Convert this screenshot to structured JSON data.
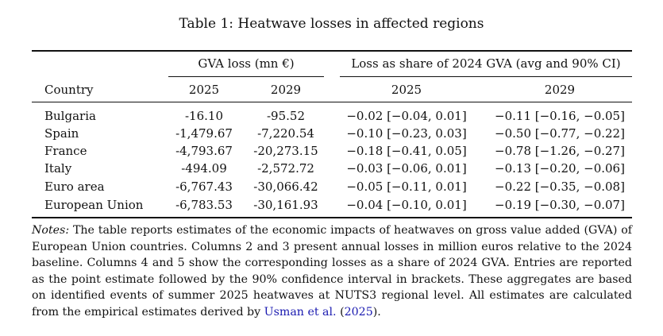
{
  "table": {
    "caption": "Table 1: Heatwave losses in affected regions",
    "group_headers": {
      "gva_loss": "GVA loss (mn €)",
      "share": "Loss as share of 2024 GVA (avg and 90% CI)"
    },
    "column_headers": {
      "country": "Country",
      "gva_2025": "2025",
      "gva_2029": "2029",
      "share_2025": "2025",
      "share_2029": "2029"
    },
    "rows": [
      {
        "country": "Bulgaria",
        "gva_2025": "-16.10",
        "gva_2029": "-95.52",
        "share_2025": "−0.02 [−0.04, 0.01]",
        "share_2029": "−0.11 [−0.16, −0.05]"
      },
      {
        "country": "Spain",
        "gva_2025": "-1,479.67",
        "gva_2029": "-7,220.54",
        "share_2025": "−0.10 [−0.23, 0.03]",
        "share_2029": "−0.50 [−0.77, −0.22]"
      },
      {
        "country": "France",
        "gva_2025": "-4,793.67",
        "gva_2029": "-20,273.15",
        "share_2025": "−0.18 [−0.41, 0.05]",
        "share_2029": "−0.78 [−1.26, −0.27]"
      },
      {
        "country": "Italy",
        "gva_2025": "-494.09",
        "gva_2029": "-2,572.72",
        "share_2025": "−0.03 [−0.06, 0.01]",
        "share_2029": "−0.13 [−0.20, −0.06]"
      },
      {
        "country": "Euro area",
        "gva_2025": "-6,767.43",
        "gva_2029": "-30,066.42",
        "share_2025": "−0.05 [−0.11, 0.01]",
        "share_2029": "−0.22 [−0.35, −0.08]"
      },
      {
        "country": "European Union",
        "gva_2025": "-6,783.53",
        "gva_2029": "-30,161.93",
        "share_2025": "−0.04 [−0.10, 0.01]",
        "share_2029": "−0.19 [−0.30, −0.07]"
      }
    ]
  },
  "notes": {
    "label": "Notes:",
    "text": " The table reports estimates of the economic impacts of heatwaves on gross value added (GVA) of European Union countries. Columns 2 and 3 present annual losses in million euros relative to the 2024 baseline. Columns 4 and 5 show the corresponding losses as a share of 2024 GVA. Entries are reported as the point estimate followed by the 90% confidence interval in brackets. These aggregates are based on identified events of summer 2025 heatwaves at NUTS3 regional level. All estimates are calculated from the empirical estimates derived by ",
    "citation_author": "Usman et al.",
    "citation_open": " (",
    "citation_year": "2025",
    "citation_close": ")."
  }
}
